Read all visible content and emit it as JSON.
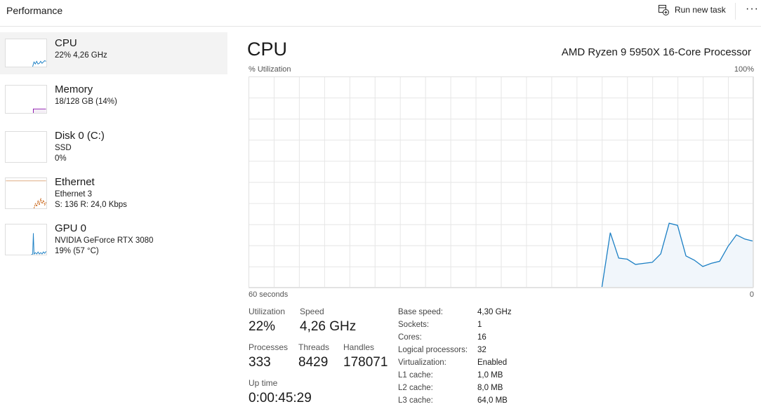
{
  "header": {
    "title": "Performance",
    "run_new_task": "Run new task",
    "more": "···"
  },
  "sidebar": {
    "items": [
      {
        "name": "CPU",
        "line1": "22%  4,26 GHz",
        "line2": "",
        "color": "#1b7fc4"
      },
      {
        "name": "Memory",
        "line1": "18/128 GB (14%)",
        "line2": "",
        "color": "#8b12ae"
      },
      {
        "name": "Disk 0 (C:)",
        "line1": "SSD",
        "line2": "0%",
        "color": "#4da60c"
      },
      {
        "name": "Ethernet",
        "line1": "Ethernet 3",
        "line2": "S: 136  R: 24,0 Kbps",
        "color": "#c65d0c"
      },
      {
        "name": "GPU 0",
        "line1": "NVIDIA GeForce RTX 3080",
        "line2": "19%  (57 °C)",
        "color": "#1b7fc4"
      }
    ]
  },
  "main": {
    "title": "CPU",
    "processor": "AMD Ryzen 9 5950X 16-Core Processor",
    "stats": {
      "utilization_label": "Utilization",
      "utilization": "22%",
      "speed_label": "Speed",
      "speed": "4,26 GHz",
      "processes_label": "Processes",
      "processes": "333",
      "threads_label": "Threads",
      "threads": "8429",
      "handles_label": "Handles",
      "handles": "178071",
      "uptime_label": "Up time",
      "uptime": "0:00:45:29"
    },
    "details": [
      {
        "k": "Base speed:",
        "v": "4,30 GHz"
      },
      {
        "k": "Sockets:",
        "v": "1"
      },
      {
        "k": "Cores:",
        "v": "16"
      },
      {
        "k": "Logical processors:",
        "v": "32"
      },
      {
        "k": "Virtualization:",
        "v": "Enabled"
      },
      {
        "k": "L1 cache:",
        "v": "1,0 MB"
      },
      {
        "k": "L2 cache:",
        "v": "8,0 MB"
      },
      {
        "k": "L3 cache:",
        "v": "64,0 MB"
      }
    ]
  },
  "chart_data": {
    "type": "area",
    "ylabel": "% Utilization",
    "ymax_label": "100%",
    "xmin_label": "60 seconds",
    "xmax_label": "0",
    "xlim": [
      60,
      0
    ],
    "ylim": [
      0,
      100
    ],
    "grid": true,
    "color": "#1b7fc4",
    "x": [
      18,
      17,
      16,
      15,
      14,
      13,
      12,
      11,
      10,
      9,
      8,
      7,
      6,
      5,
      4,
      3,
      2,
      1,
      0
    ],
    "values": [
      0,
      26,
      14,
      13.5,
      11,
      11.5,
      12,
      16,
      30.5,
      29.5,
      15,
      13,
      10,
      11.5,
      12.5,
      19.5,
      25,
      23,
      22
    ]
  }
}
